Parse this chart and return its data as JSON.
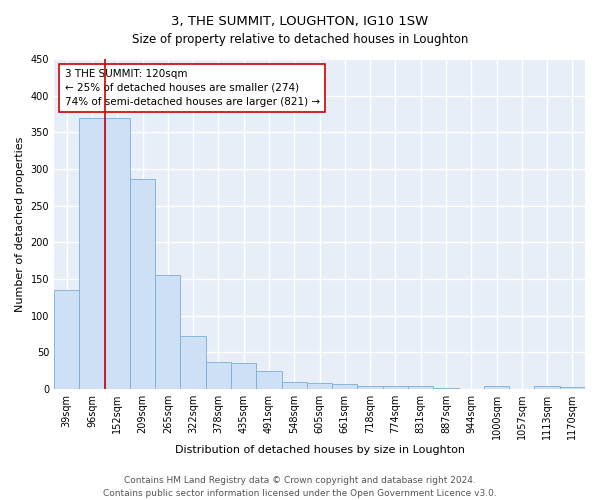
{
  "title": "3, THE SUMMIT, LOUGHTON, IG10 1SW",
  "subtitle": "Size of property relative to detached houses in Loughton",
  "xlabel": "Distribution of detached houses by size in Loughton",
  "ylabel": "Number of detached properties",
  "categories": [
    "39sqm",
    "96sqm",
    "152sqm",
    "209sqm",
    "265sqm",
    "322sqm",
    "378sqm",
    "435sqm",
    "491sqm",
    "548sqm",
    "605sqm",
    "661sqm",
    "718sqm",
    "774sqm",
    "831sqm",
    "887sqm",
    "944sqm",
    "1000sqm",
    "1057sqm",
    "1113sqm",
    "1170sqm"
  ],
  "values": [
    135,
    370,
    370,
    287,
    155,
    73,
    37,
    36,
    25,
    10,
    8,
    7,
    4,
    4,
    4,
    2,
    0,
    4,
    0,
    4,
    3
  ],
  "bar_color": "#cde0f5",
  "bar_edge_color": "#7aafd4",
  "vline_x": 1.5,
  "vline_color": "#cc0000",
  "annotation_text": "3 THE SUMMIT: 120sqm\n← 25% of detached houses are smaller (274)\n74% of semi-detached houses are larger (821) →",
  "annotation_box_facecolor": "white",
  "annotation_box_edgecolor": "#cc0000",
  "ylim": [
    0,
    450
  ],
  "yticks": [
    0,
    50,
    100,
    150,
    200,
    250,
    300,
    350,
    400,
    450
  ],
  "background_color": "#e8eef8",
  "grid_color": "white",
  "footer1": "Contains HM Land Registry data © Crown copyright and database right 2024.",
  "footer2": "Contains public sector information licensed under the Open Government Licence v3.0.",
  "title_fontsize": 9.5,
  "subtitle_fontsize": 8.5,
  "axis_label_fontsize": 8,
  "tick_fontsize": 7,
  "footer_fontsize": 6.5,
  "annotation_fontsize": 7.5
}
